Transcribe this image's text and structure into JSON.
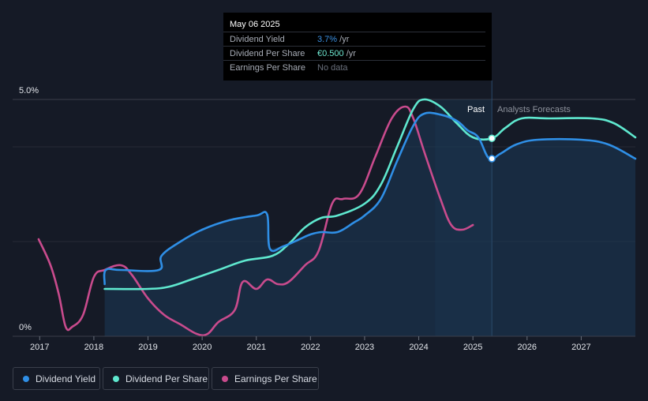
{
  "tooltip": {
    "date": "May 06 2025",
    "rows": [
      {
        "label": "Dividend Yield",
        "value": "3.7%",
        "unit": " /yr"
      },
      {
        "label": "Dividend Per Share",
        "value": "€0.500",
        "unit": " /yr"
      },
      {
        "label": "Earnings Per Share",
        "value": "No data",
        "unit": ""
      }
    ]
  },
  "regions": {
    "past": "Past",
    "forecast": "Analysts Forecasts"
  },
  "legend": [
    {
      "label": "Dividend Yield",
      "color": "#2f8fe6"
    },
    {
      "label": "Dividend Per Share",
      "color": "#5fe8cf"
    },
    {
      "label": "Earnings Per Share",
      "color": "#c94b8d"
    }
  ],
  "chart_data": {
    "type": "line",
    "ylim": [
      0,
      5.0
    ],
    "y_tick_labels": [
      "0%",
      "5.0%"
    ],
    "x_tick_labels": [
      "2017",
      "2018",
      "2019",
      "2020",
      "2021",
      "2022",
      "2023",
      "2024",
      "2025",
      "2026",
      "2027"
    ],
    "x_range": [
      2016.5,
      2028.0
    ],
    "forecast_start": 2025.35,
    "series": [
      {
        "name": "Dividend Yield",
        "color": "#2f8fe6",
        "points": [
          [
            2018.2,
            1.1
          ],
          [
            2018.22,
            1.4
          ],
          [
            2018.5,
            1.4
          ],
          [
            2019.2,
            1.4
          ],
          [
            2019.25,
            1.7
          ],
          [
            2019.6,
            2.0
          ],
          [
            2020.0,
            2.25
          ],
          [
            2020.5,
            2.45
          ],
          [
            2021.0,
            2.55
          ],
          [
            2021.2,
            2.57
          ],
          [
            2021.25,
            1.85
          ],
          [
            2021.5,
            1.9
          ],
          [
            2021.8,
            2.05
          ],
          [
            2022.0,
            2.15
          ],
          [
            2022.2,
            2.2
          ],
          [
            2022.5,
            2.2
          ],
          [
            2022.8,
            2.4
          ],
          [
            2023.0,
            2.55
          ],
          [
            2023.3,
            2.9
          ],
          [
            2023.6,
            3.7
          ],
          [
            2023.9,
            4.45
          ],
          [
            2024.1,
            4.7
          ],
          [
            2024.4,
            4.68
          ],
          [
            2024.7,
            4.55
          ],
          [
            2024.9,
            4.35
          ],
          [
            2025.1,
            4.2
          ],
          [
            2025.3,
            3.75
          ],
          [
            2025.5,
            3.85
          ],
          [
            2025.8,
            4.05
          ],
          [
            2026.2,
            4.15
          ],
          [
            2027.0,
            4.15
          ],
          [
            2027.5,
            4.05
          ],
          [
            2028.0,
            3.75
          ]
        ]
      },
      {
        "name": "Dividend Per Share",
        "color": "#5fe8cf",
        "points": [
          [
            2018.2,
            1.0
          ],
          [
            2019.0,
            1.0
          ],
          [
            2019.4,
            1.05
          ],
          [
            2019.8,
            1.2
          ],
          [
            2020.3,
            1.4
          ],
          [
            2020.8,
            1.6
          ],
          [
            2021.3,
            1.7
          ],
          [
            2021.6,
            1.95
          ],
          [
            2021.9,
            2.3
          ],
          [
            2022.2,
            2.5
          ],
          [
            2022.5,
            2.55
          ],
          [
            2023.0,
            2.8
          ],
          [
            2023.3,
            3.2
          ],
          [
            2023.6,
            4.0
          ],
          [
            2023.9,
            4.8
          ],
          [
            2024.1,
            5.0
          ],
          [
            2024.4,
            4.85
          ],
          [
            2024.7,
            4.5
          ],
          [
            2025.0,
            4.2
          ],
          [
            2025.35,
            4.18
          ],
          [
            2025.6,
            4.4
          ],
          [
            2025.9,
            4.6
          ],
          [
            2026.4,
            4.6
          ],
          [
            2027.2,
            4.6
          ],
          [
            2027.6,
            4.5
          ],
          [
            2028.0,
            4.2
          ]
        ]
      },
      {
        "name": "Earnings Per Share",
        "color": "#c94b8d",
        "points": [
          [
            2016.98,
            2.05
          ],
          [
            2017.2,
            1.5
          ],
          [
            2017.35,
            0.9
          ],
          [
            2017.48,
            0.2
          ],
          [
            2017.6,
            0.2
          ],
          [
            2017.8,
            0.45
          ],
          [
            2018.0,
            1.25
          ],
          [
            2018.2,
            1.4
          ],
          [
            2018.5,
            1.5
          ],
          [
            2018.7,
            1.3
          ],
          [
            2019.0,
            0.8
          ],
          [
            2019.3,
            0.45
          ],
          [
            2019.6,
            0.25
          ],
          [
            2019.9,
            0.05
          ],
          [
            2020.1,
            0.05
          ],
          [
            2020.3,
            0.3
          ],
          [
            2020.6,
            0.55
          ],
          [
            2020.75,
            1.15
          ],
          [
            2021.0,
            1.0
          ],
          [
            2021.2,
            1.2
          ],
          [
            2021.4,
            1.1
          ],
          [
            2021.6,
            1.15
          ],
          [
            2021.9,
            1.5
          ],
          [
            2022.15,
            1.8
          ],
          [
            2022.4,
            2.8
          ],
          [
            2022.6,
            2.9
          ],
          [
            2022.9,
            3.0
          ],
          [
            2023.2,
            3.8
          ],
          [
            2023.5,
            4.6
          ],
          [
            2023.75,
            4.85
          ],
          [
            2023.9,
            4.6
          ],
          [
            2024.1,
            3.9
          ],
          [
            2024.4,
            2.9
          ],
          [
            2024.6,
            2.35
          ],
          [
            2024.8,
            2.25
          ],
          [
            2025.0,
            2.35
          ]
        ]
      }
    ],
    "markers": [
      {
        "series": "Dividend Yield",
        "x": 2025.35,
        "y": 3.75
      },
      {
        "series": "Dividend Per Share",
        "x": 2025.35,
        "y": 4.18
      }
    ]
  }
}
